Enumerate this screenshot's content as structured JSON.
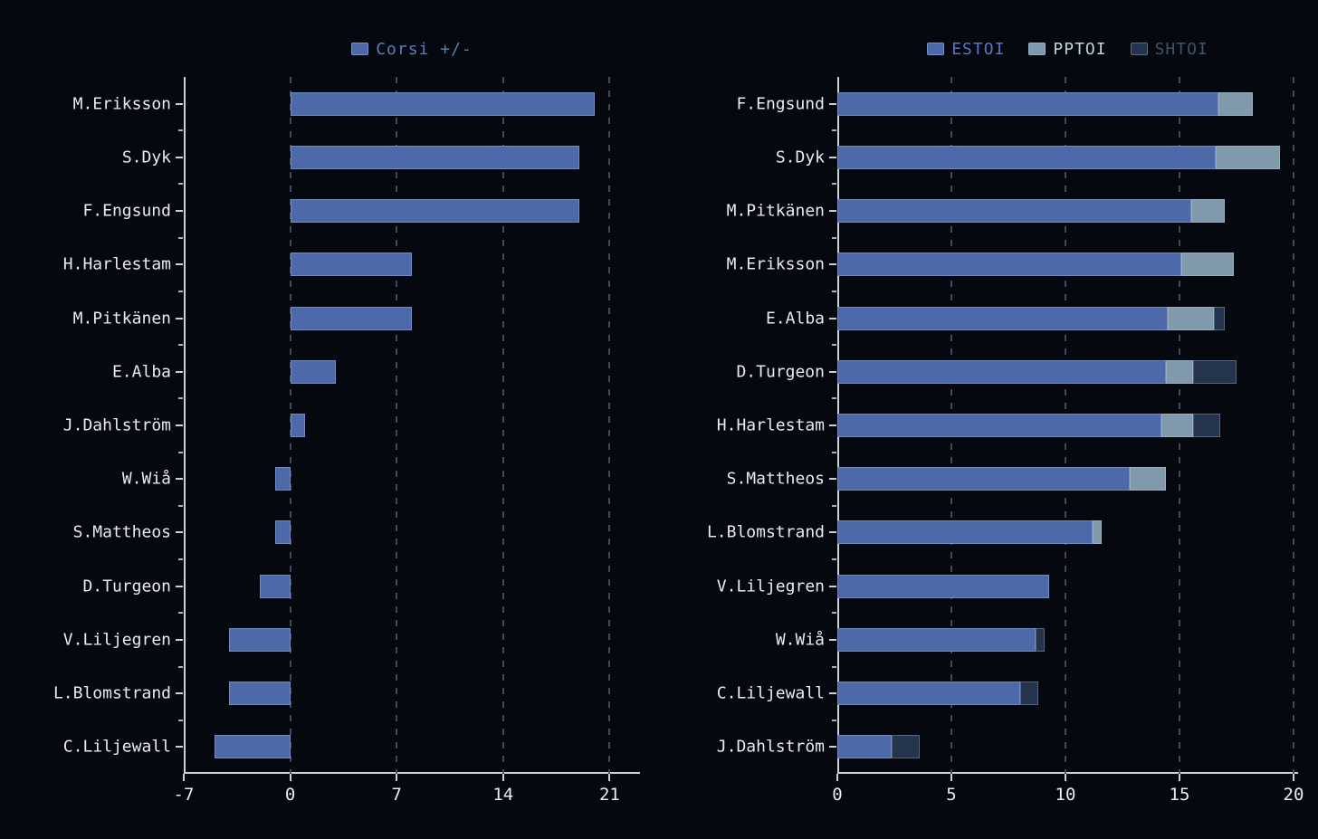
{
  "colors": {
    "background": "#05080f",
    "axis": "#cdd0d4",
    "grid": "#424957",
    "text": "#e9ebee",
    "estoi_blue": "#4c6aa9",
    "pptoi_gray_blue": "#8099ab",
    "shtoi_dark_navy": "#24344c"
  },
  "chart_data": [
    {
      "type": "bar",
      "orientation": "horizontal",
      "title": "",
      "legend_position": "top-center",
      "grid": "vertical-dashed",
      "xlim": [
        -7,
        23
      ],
      "xticks": [
        -7,
        0,
        7,
        14,
        21
      ],
      "categories": [
        "M.Eriksson",
        "S.Dyk",
        "F.Engsund",
        "H.Harlestam",
        "M.Pitkänen",
        "E.Alba",
        "J.Dahlström",
        "W.Wiå",
        "S.Mattheos",
        "D.Turgeon",
        "V.Liljegren",
        "L.Blomstrand",
        "C.Liljewall"
      ],
      "series": [
        {
          "key": "corsi",
          "name": "Corsi +/-",
          "color": "#4c6aa9",
          "label_color": "#5d7cba",
          "values": [
            20,
            19,
            19,
            8,
            8,
            3,
            1,
            -1,
            -1,
            -2,
            -4,
            -4,
            -5
          ]
        }
      ]
    },
    {
      "type": "stacked-bar",
      "orientation": "horizontal",
      "title": "",
      "legend_position": "top-center",
      "grid": "vertical-dashed",
      "xlim": [
        0,
        20.2
      ],
      "xticks": [
        0,
        5,
        10,
        15,
        20
      ],
      "categories": [
        "F.Engsund",
        "S.Dyk",
        "M.Pitkänen",
        "M.Eriksson",
        "E.Alba",
        "D.Turgeon",
        "H.Harlestam",
        "S.Mattheos",
        "L.Blomstrand",
        "V.Liljegren",
        "W.Wiå",
        "C.Liljewall",
        "J.Dahlström"
      ],
      "series": [
        {
          "key": "estoi",
          "name": "ESTOI",
          "color": "#4c6aa9",
          "label_color": "#5575c5",
          "values": [
            16.7,
            16.6,
            15.5,
            15.1,
            14.5,
            14.4,
            14.2,
            12.8,
            11.2,
            9.3,
            8.7,
            8.0,
            2.4
          ]
        },
        {
          "key": "pptoi",
          "name": "PPTOI",
          "color": "#8099ab",
          "label_color": "#c2d3de",
          "values": [
            1.5,
            2.8,
            1.5,
            2.3,
            2.0,
            1.2,
            1.4,
            1.6,
            0.4,
            0,
            0,
            0,
            0
          ]
        },
        {
          "key": "shtoi",
          "name": "SHTOI",
          "color": "#24344c",
          "label_color": "#3f5269",
          "values": [
            0,
            0,
            0,
            0,
            0.5,
            1.9,
            1.2,
            0,
            0,
            0,
            0.4,
            0.8,
            1.2
          ]
        }
      ]
    }
  ]
}
